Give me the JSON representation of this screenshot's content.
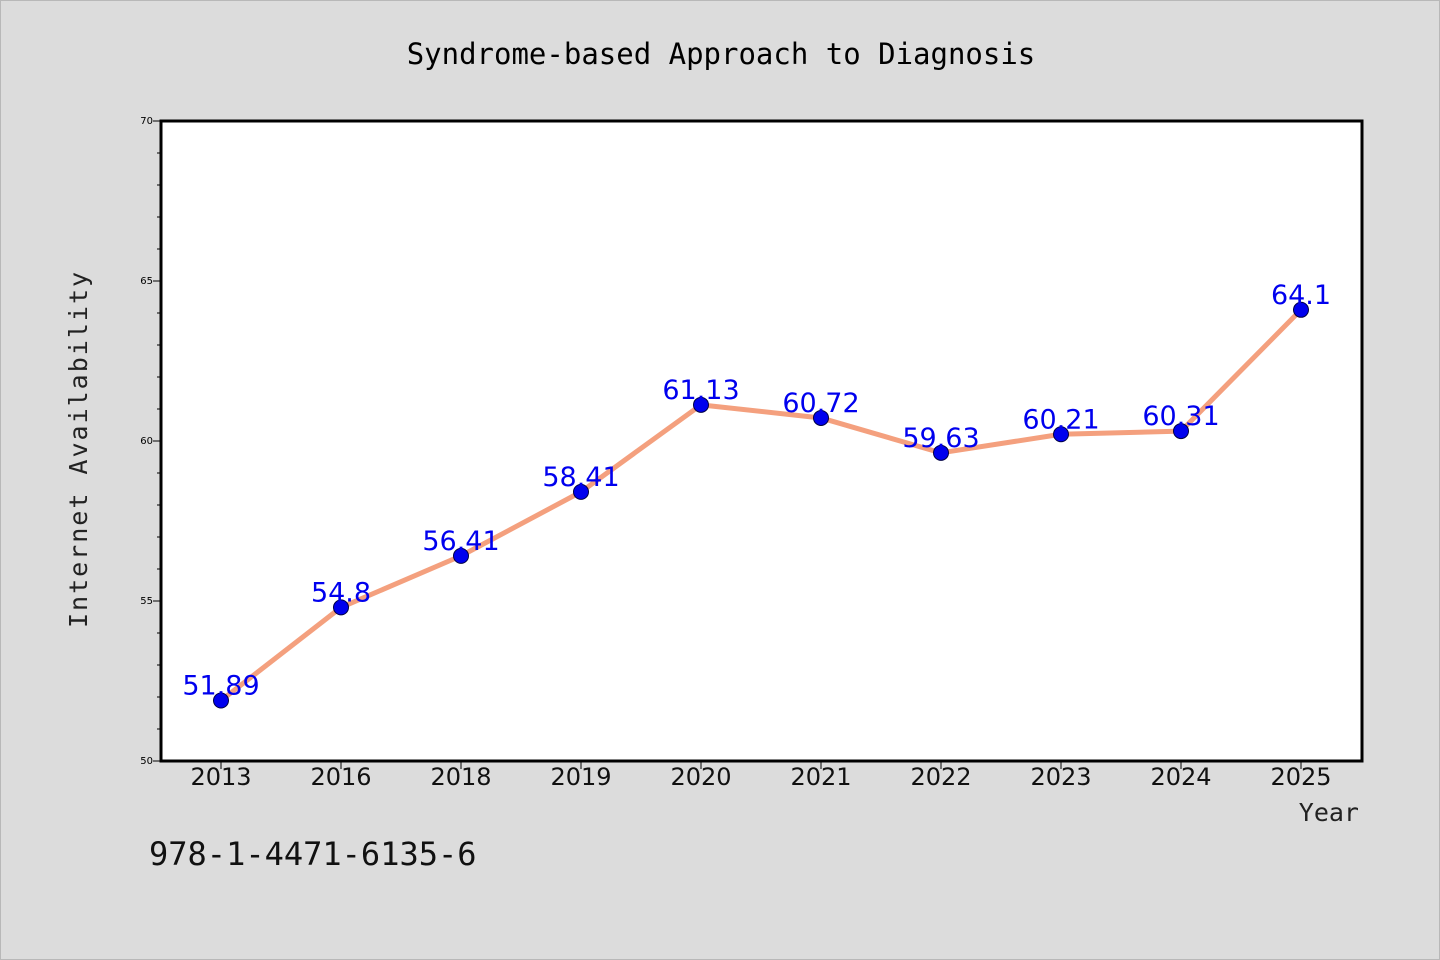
{
  "chart_data": {
    "type": "line",
    "title": "Syndrome-based Approach to Diagnosis",
    "xlabel": "Year",
    "ylabel": "Internet Availability",
    "categories": [
      "2013",
      "2016",
      "2018",
      "2019",
      "2020",
      "2021",
      "2022",
      "2023",
      "2024",
      "2025"
    ],
    "values": [
      51.89,
      54.8,
      56.41,
      58.41,
      61.13,
      60.72,
      59.63,
      60.21,
      60.31,
      64.1
    ],
    "data_labels": [
      "51.89",
      "54.8",
      "56.41",
      "58.41",
      "61.13",
      "60.72",
      "59.63",
      "60.21",
      "60.31",
      "64.1"
    ],
    "ylim": [
      50,
      70
    ],
    "yticks": [
      50,
      55,
      60,
      65,
      70
    ],
    "grid": false,
    "legend": "none",
    "colors": {
      "line": "#f4a07e",
      "marker": "#0000ee",
      "data_label": "#0000ee",
      "plot_background": "#ffffff",
      "page_background": "#dcdcdc",
      "frame": "#000000"
    }
  },
  "annotation": "978-1-4471-6135-6"
}
